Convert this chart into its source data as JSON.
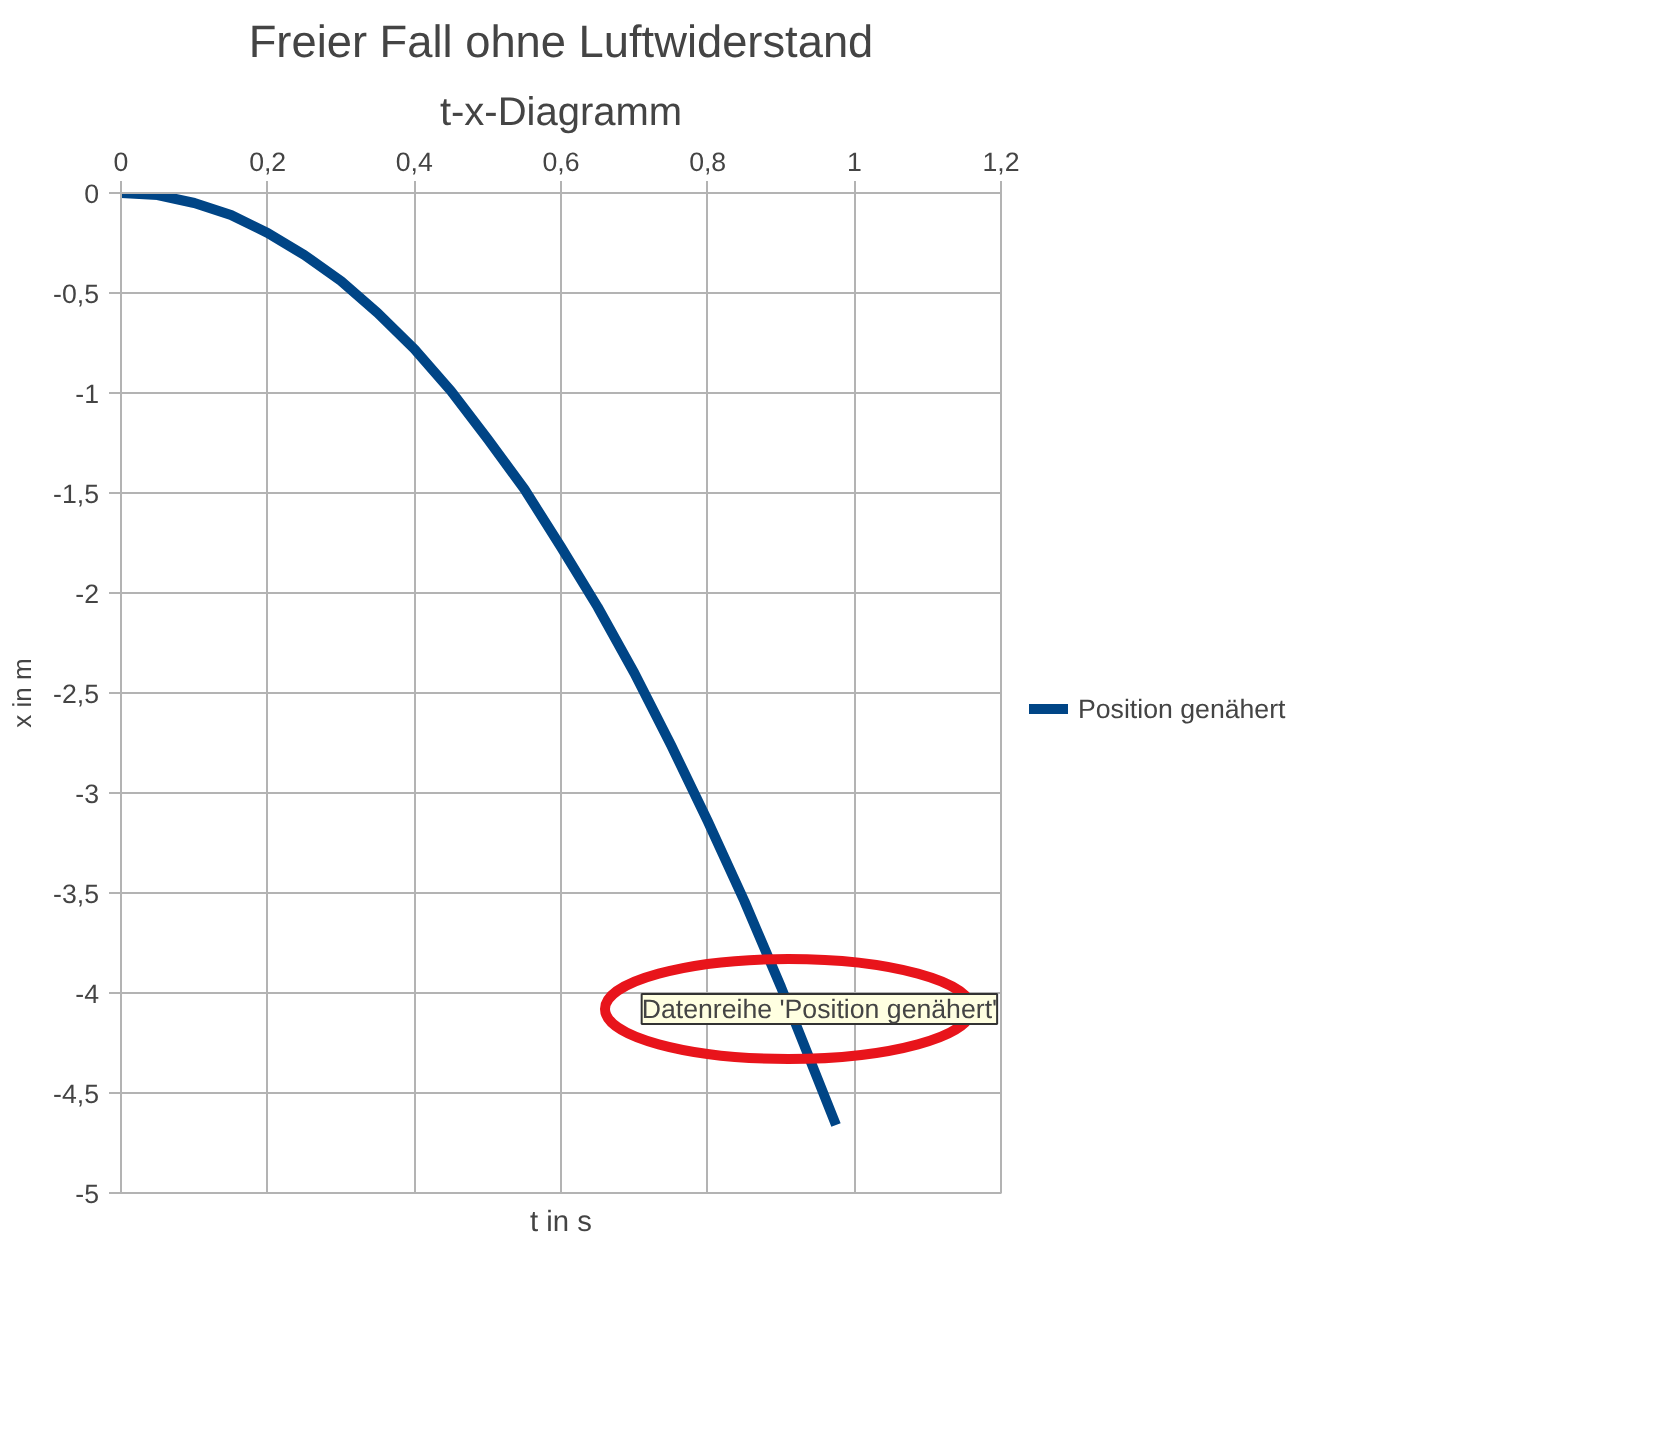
{
  "chart_data": {
    "type": "line",
    "title": "Freier Fall ohne Luftwiderstand",
    "subtitle": "t-x-Diagramm",
    "xlabel": "t in s",
    "ylabel": "x in m",
    "x": [
      0,
      0.05,
      0.1,
      0.15,
      0.2,
      0.25,
      0.3,
      0.35,
      0.4,
      0.45,
      0.5,
      0.55,
      0.6,
      0.65,
      0.7,
      0.75,
      0.8,
      0.85,
      0.9,
      0.95,
      0.975
    ],
    "series": [
      {
        "name": "Position genähert",
        "color": "#004586",
        "values": [
          0,
          -0.01,
          -0.05,
          -0.11,
          -0.2,
          -0.31,
          -0.44,
          -0.6,
          -0.78,
          -0.99,
          -1.23,
          -1.48,
          -1.77,
          -2.07,
          -2.4,
          -2.76,
          -3.14,
          -3.54,
          -3.97,
          -4.43,
          -4.66
        ]
      }
    ],
    "xlim": [
      0,
      1.2
    ],
    "xticks": [
      0,
      {
        "value": 0.2,
        "label": "0,2"
      },
      {
        "value": 0.4,
        "label": "0,4"
      },
      {
        "value": 0.6,
        "label": "0,6"
      },
      {
        "value": 0.8,
        "label": "0,8"
      },
      1,
      {
        "value": 1.2,
        "label": "1,2"
      }
    ],
    "ylim": [
      -5,
      0
    ],
    "yticks": [
      0,
      {
        "value": -0.5,
        "label": "-0,5"
      },
      -1,
      {
        "value": -1.5,
        "label": "-1,5"
      },
      -2,
      {
        "value": -2.5,
        "label": "-2,5"
      },
      -3,
      {
        "value": -3.5,
        "label": "-3,5"
      },
      -4,
      {
        "value": -4.5,
        "label": "-4,5"
      },
      -5
    ],
    "grid": true,
    "legend": "right",
    "marker": "none",
    "line_style": "solid",
    "annotations": [
      "Datenreihe 'Position genähert'"
    ]
  }
}
